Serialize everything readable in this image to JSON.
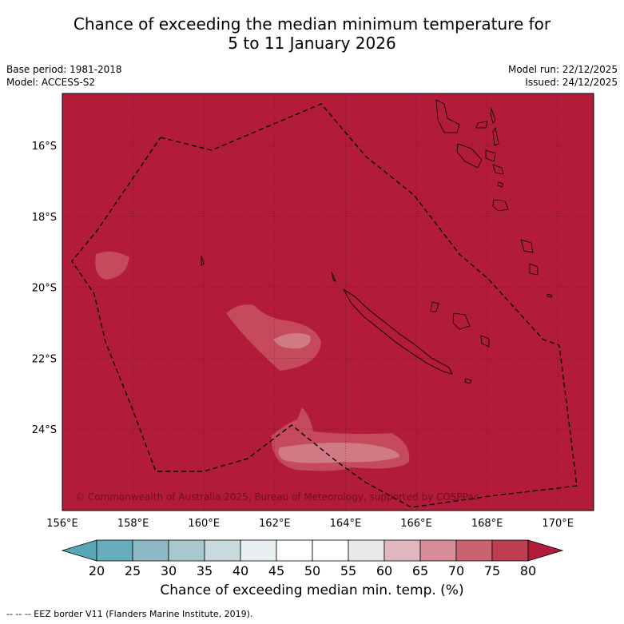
{
  "title": {
    "line1": "Chance of exceeding the median minimum temperature for",
    "line2": "5 to 11 January 2026"
  },
  "meta": {
    "base_period": "Base period: 1981-2018",
    "model": "Model: ACCESS-S2",
    "model_run": "Model run: 22/12/2025",
    "issued": "Issued: 24/12/2025"
  },
  "map": {
    "lon_ticks": [
      "156°E",
      "158°E",
      "160°E",
      "162°E",
      "164°E",
      "166°E",
      "168°E",
      "170°E"
    ],
    "lat_ticks": [
      "16°S",
      "18°S",
      "20°S",
      "22°S",
      "24°S"
    ],
    "copyright": "© Commonwealth of Australia 2025, Bureau of Meteorology, supported by COSPPac",
    "background_color": "#b21c3a"
  },
  "colorbar": {
    "ticks": [
      "20",
      "25",
      "30",
      "35",
      "40",
      "45",
      "50",
      "55",
      "60",
      "65",
      "70",
      "75",
      "80"
    ],
    "colors": [
      "#68adbd",
      "#8db9c4",
      "#a9c8cd",
      "#c8dadd",
      "#e8eff0",
      "#ffffff",
      "#ffffff",
      "#e9e9e9",
      "#e1b7bd",
      "#d68d98",
      "#ca6371",
      "#bd3f51"
    ],
    "under_color": "#58a7b6",
    "over_color": "#b21c3a",
    "label": "Chance of exceeding median min. temp. (%)"
  },
  "footnote": "--  --  -- EEZ border V11 (Flanders Marine Institute, 2019)."
}
